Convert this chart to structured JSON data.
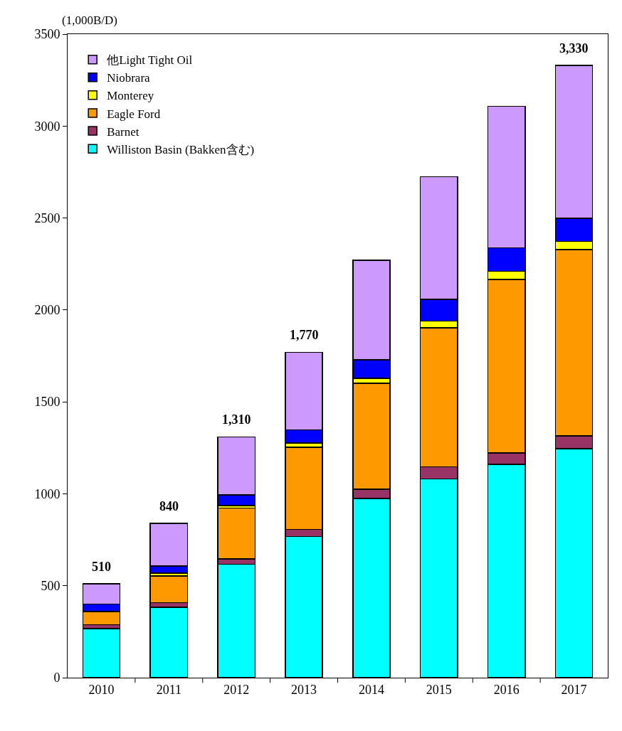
{
  "chart_data": {
    "type": "bar",
    "stacked": true,
    "ylabel": "(1,000B/D)",
    "categories": [
      "2010",
      "2011",
      "2012",
      "2013",
      "2014",
      "2015",
      "2016",
      "2017"
    ],
    "series": [
      {
        "name": "Williston Basin (Bakken含む)",
        "color": "#00ffff",
        "values": [
          266,
          382,
          616,
          768,
          975,
          1081,
          1161,
          1245
        ]
      },
      {
        "name": "Barnet",
        "color": "#993366",
        "values": [
          23,
          26,
          30,
          39,
          50,
          65,
          62,
          69
        ]
      },
      {
        "name": "Eagle Ford",
        "color": "#ff9900",
        "values": [
          70,
          145,
          276,
          447,
          577,
          756,
          943,
          1014
        ]
      },
      {
        "name": "Monterey",
        "color": "#ffff00",
        "values": [
          3,
          15,
          13,
          23,
          26,
          38,
          44,
          44
        ]
      },
      {
        "name": "Niobrara",
        "color": "#0000ff",
        "values": [
          38,
          39,
          58,
          71,
          100,
          117,
          127,
          126
        ]
      },
      {
        "name": "他Light Tight Oil",
        "color": "#cc99ff",
        "values": [
          110,
          233,
          317,
          422,
          542,
          668,
          771,
          832
        ]
      }
    ],
    "totals": [
      "510",
      "840",
      "1,310",
      "1,770",
      null,
      null,
      null,
      "3,330"
    ],
    "ylim": [
      0,
      3500
    ],
    "yticks": [
      0,
      500,
      1000,
      1500,
      2000,
      2500,
      3000,
      3500
    ],
    "grid": false,
    "legend": "top left"
  }
}
